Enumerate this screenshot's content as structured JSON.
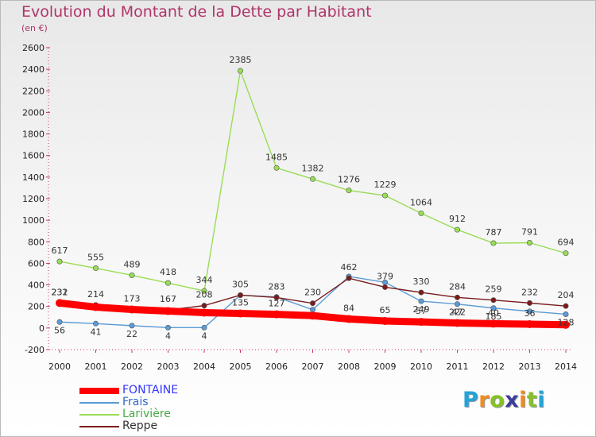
{
  "chart_data": {
    "type": "line",
    "title": "Evolution du Montant de la Dette par Habitant",
    "subtitle": "(en €)",
    "x": [
      "2000",
      "2001",
      "2002",
      "2003",
      "2004",
      "2005",
      "2006",
      "2007",
      "2008",
      "2009",
      "2010",
      "2011",
      "2012",
      "2013",
      "2014"
    ],
    "ylim": [
      -200,
      2600
    ],
    "yticks": [
      -200,
      0,
      200,
      400,
      600,
      800,
      1000,
      1200,
      1400,
      1600,
      1800,
      2000,
      2200,
      2400,
      2600
    ],
    "grid": false,
    "legend_position": "bottom-left",
    "series": [
      {
        "name": "FONTAINE",
        "color": "#ff0000",
        "label_color": "#3333ff",
        "values": [
          232,
          194,
          172,
          157,
          143,
          135,
          127,
          115,
          84,
          65,
          57,
          47,
          40,
          36,
          30
        ],
        "labels": [
          "232",
          "",
          "",
          "",
          "",
          "135",
          "127",
          "",
          "84",
          "65",
          "57",
          "47",
          "40",
          "36",
          ""
        ]
      },
      {
        "name": "Frais",
        "color": "#5b9bd5",
        "label_color": "#3366cc",
        "values": [
          56,
          41,
          22,
          4,
          4,
          305,
          288,
          170,
          478,
          424,
          249,
          222,
          185,
          155,
          128
        ],
        "labels": [
          "56",
          "41",
          "22",
          "4",
          "4",
          "",
          "",
          "",
          "",
          "",
          "249",
          "222",
          "185",
          "",
          "128"
        ]
      },
      {
        "name": "Larivière",
        "color": "#99dd55",
        "label_color": "#44aa44",
        "values": [
          617,
          555,
          489,
          418,
          344,
          2385,
          1485,
          1382,
          1276,
          1229,
          1064,
          912,
          787,
          791,
          694
        ],
        "labels": [
          "617",
          "555",
          "489",
          "418",
          "344",
          "2385",
          "1485",
          "1382",
          "1276",
          "1229",
          "1064",
          "912",
          "787",
          "791",
          "694"
        ]
      },
      {
        "name": "Reppe",
        "color": "#7a1c1c",
        "label_color": "#333333",
        "values": [
          231,
          214,
          173,
          167,
          208,
          305,
          283,
          230,
          462,
          379,
          330,
          284,
          259,
          232,
          204
        ],
        "labels": [
          "231",
          "214",
          "173",
          "167",
          "208",
          "305",
          "283",
          "230",
          "462",
          "379",
          "330",
          "284",
          "259",
          "232",
          "204"
        ]
      }
    ]
  },
  "logo": {
    "letters": [
      "P",
      "r",
      "o",
      "x",
      "i",
      "t",
      "i"
    ],
    "colors": [
      "#22a4d8",
      "#f18b1c",
      "#84c225",
      "#3d3d9c",
      "#f18b1c",
      "#84c225",
      "#22a4d8"
    ]
  }
}
